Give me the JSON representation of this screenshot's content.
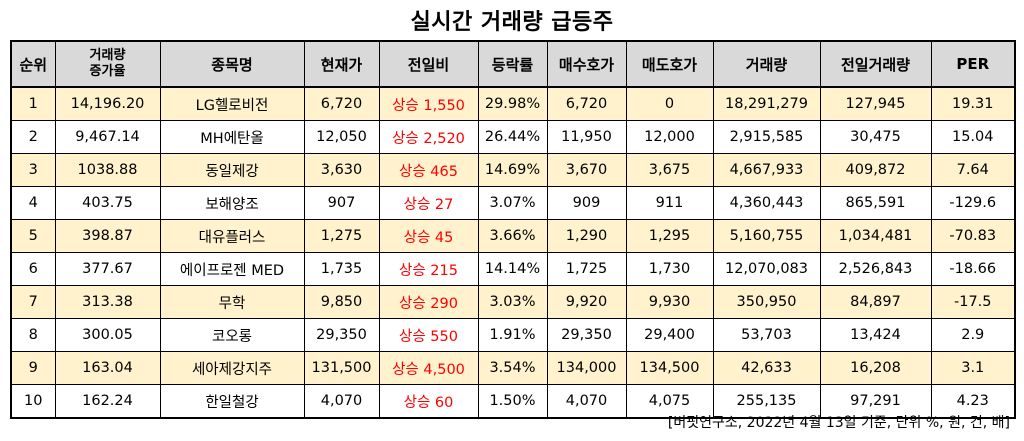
{
  "title": "실시간 거래량 급등주",
  "headers": [
    "순위",
    "거래량\n증가율",
    "종목명",
    "현재가",
    "전일비",
    "등락률",
    "매수호가",
    "매도호가",
    "거래량",
    "전일거래량",
    "PER"
  ],
  "rows": [
    [
      "1",
      "14,196.20",
      "LG헬로비전",
      "6,720",
      "상승 1,550",
      "29.98%",
      "6,720",
      "0",
      "18,291,279",
      "127,945",
      "19.31"
    ],
    [
      "2",
      "9,467.14",
      "MH에탄올",
      "12,050",
      "상승 2,520",
      "26.44%",
      "11,950",
      "12,000",
      "2,915,585",
      "30,475",
      "15.04"
    ],
    [
      "3",
      "1038.88",
      "동일제강",
      "3,630",
      "상승 465",
      "14.69%",
      "3,670",
      "3,675",
      "4,667,933",
      "409,872",
      "7.64"
    ],
    [
      "4",
      "403.75",
      "보해양조",
      "907",
      "상승 27",
      "3.07%",
      "909",
      "911",
      "4,360,443",
      "865,591",
      "-129.6"
    ],
    [
      "5",
      "398.87",
      "대유플러스",
      "1,275",
      "상승 45",
      "3.66%",
      "1,290",
      "1,295",
      "5,160,755",
      "1,034,481",
      "-70.83"
    ],
    [
      "6",
      "377.67",
      "에이프로젠 MED",
      "1,735",
      "상승 215",
      "14.14%",
      "1,725",
      "1,730",
      "12,070,083",
      "2,526,843",
      "-18.66"
    ],
    [
      "7",
      "313.38",
      "무학",
      "9,850",
      "상승 290",
      "3.03%",
      "9,920",
      "9,930",
      "350,950",
      "84,897",
      "-17.5"
    ],
    [
      "8",
      "300.05",
      "코오롱",
      "29,350",
      "상승 550",
      "1.91%",
      "29,350",
      "29,400",
      "53,703",
      "13,424",
      "2.9"
    ],
    [
      "9",
      "163.04",
      "세아제강지주",
      "131,500",
      "상승 4,500",
      "3.54%",
      "134,000",
      "134,500",
      "42,633",
      "16,208",
      "3.1"
    ],
    [
      "10",
      "162.24",
      "한일철강",
      "4,070",
      "상승 60",
      "1.50%",
      "4,070",
      "4,075",
      "255,135",
      "97,291",
      "4.23"
    ]
  ],
  "footnote": "[버핏연구소, 2022년 4월 13일 기준, 단위 %, 원, 건, 배]",
  "colors": {
    "header_bg": "#d9d9d9",
    "odd_row_bg": "#fff2cc",
    "even_row_bg": "#ffffff",
    "change_text": "#ff0000"
  }
}
